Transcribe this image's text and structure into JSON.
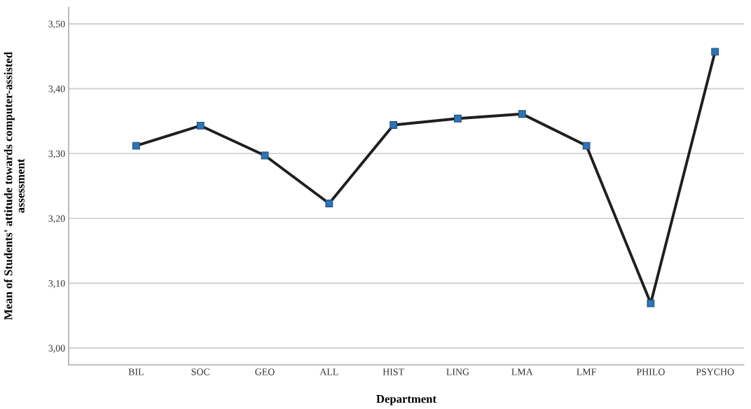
{
  "chart_data": {
    "type": "line",
    "xlabel": "Department",
    "ylabel": "Mean of Students' attitude towards computer-assisted\nassessment",
    "categories": [
      "BIL",
      "SOC",
      "GEO",
      "ALL",
      "HIST",
      "LING",
      "LMA",
      "LMF",
      "PHILO",
      "PSYCHO"
    ],
    "series": [
      {
        "color": "#1f1f1f",
        "values": [
          3.312,
          3.343,
          3.297,
          3.223,
          3.344,
          3.354,
          3.361,
          3.312,
          3.069,
          3.457
        ]
      }
    ],
    "ylim": [
      2.974,
      3.526
    ],
    "yticks": [
      {
        "value": 3.0,
        "label": "3,00"
      },
      {
        "value": 3.1,
        "label": "3,10"
      },
      {
        "value": 3.2,
        "label": "3,20"
      },
      {
        "value": 3.3,
        "label": "3,30"
      },
      {
        "value": 3.4,
        "label": "3,40"
      },
      {
        "value": 3.5,
        "label": "3,50"
      }
    ],
    "grid": "y",
    "marker": "square",
    "line_style": "solid"
  }
}
